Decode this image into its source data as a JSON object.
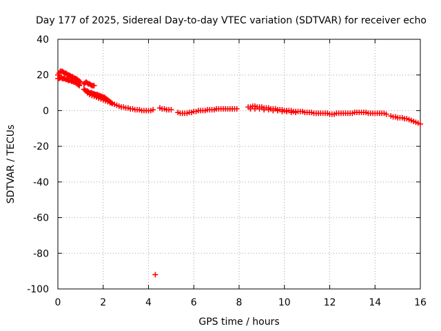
{
  "chart_data": {
    "type": "scatter",
    "title": "Day 177 of 2025, Sidereal Day-to-day VTEC variation (SDTVAR) for receiver echo",
    "xlabel": "GPS time / hours",
    "ylabel": "SDTVAR / TECUs",
    "xlim": [
      0,
      16
    ],
    "ylim": [
      -100,
      40
    ],
    "xticks": [
      0,
      2,
      4,
      6,
      8,
      10,
      12,
      14,
      16
    ],
    "yticks": [
      -100,
      -80,
      -60,
      -40,
      -20,
      0,
      20,
      40
    ],
    "grid": true,
    "marker": "plus",
    "series": [
      {
        "name": "SDTVAR",
        "color": "#ff0000",
        "x": [
          0.0,
          0.05,
          0.1,
          0.15,
          0.2,
          0.25,
          0.3,
          0.35,
          0.4,
          0.45,
          0.5,
          0.55,
          0.6,
          0.65,
          0.7,
          0.75,
          0.8,
          0.85,
          0.9,
          0.95,
          1.0,
          0.0,
          0.05,
          0.1,
          0.15,
          0.2,
          0.25,
          0.3,
          0.35,
          0.4,
          0.45,
          0.5,
          0.55,
          0.6,
          0.65,
          0.7,
          0.75,
          0.8,
          0.85,
          0.9,
          0.95,
          1.15,
          1.2,
          1.25,
          1.3,
          1.35,
          1.4,
          1.45,
          1.5,
          1.55,
          1.6,
          1.15,
          1.2,
          1.25,
          1.3,
          1.35,
          1.4,
          1.45,
          1.5,
          1.55,
          1.6,
          1.65,
          1.7,
          1.75,
          1.8,
          1.85,
          1.9,
          1.95,
          2.0,
          2.05,
          2.1,
          2.15,
          2.2,
          2.25,
          2.3,
          2.35,
          2.4,
          1.3,
          1.4,
          1.5,
          1.6,
          1.7,
          1.8,
          1.9,
          2.0,
          2.1,
          2.2,
          2.3,
          2.4,
          2.5,
          2.6,
          2.7,
          2.8,
          2.9,
          3.0,
          3.1,
          3.2,
          3.3,
          3.4,
          3.5,
          3.6,
          3.7,
          3.8,
          3.9,
          4.0,
          4.1,
          4.2,
          4.3,
          4.5,
          4.6,
          4.7,
          4.8,
          4.9,
          5.0,
          5.3,
          5.4,
          5.5,
          5.6,
          5.7,
          5.8,
          5.9,
          6.0,
          6.1,
          6.2,
          6.3,
          6.4,
          6.5,
          6.6,
          6.7,
          6.8,
          6.9,
          7.0,
          7.1,
          7.2,
          7.3,
          7.4,
          7.5,
          7.6,
          7.7,
          7.8,
          7.9,
          8.4,
          8.5,
          8.6,
          8.7,
          8.8,
          8.9,
          9.0,
          9.1,
          9.2,
          9.3,
          9.4,
          9.5,
          9.6,
          9.7,
          9.8,
          9.9,
          10.0,
          10.1,
          10.2,
          10.3,
          10.4,
          10.5,
          10.6,
          10.7,
          10.8,
          10.9,
          11.0,
          8.5,
          8.7,
          8.9,
          9.1,
          9.3,
          9.5,
          9.7,
          9.9,
          10.1,
          10.3,
          10.5,
          11.1,
          11.2,
          11.3,
          11.4,
          11.5,
          11.6,
          11.7,
          11.8,
          11.9,
          12.0,
          12.1,
          12.2,
          12.3,
          12.4,
          12.5,
          12.6,
          12.7,
          12.8,
          12.9,
          13.0,
          13.1,
          13.2,
          13.3,
          13.4,
          13.5,
          13.6,
          13.7,
          13.8,
          13.9,
          14.0,
          14.1,
          14.2,
          14.3,
          14.4,
          14.5,
          14.7,
          14.8,
          14.9,
          15.0,
          15.1,
          15.2,
          15.3,
          15.4,
          15.5,
          15.6,
          15.7,
          15.8,
          15.9,
          16.0
        ],
        "y": [
          20,
          21,
          22,
          22,
          22,
          21.5,
          21,
          21,
          20.5,
          20,
          20,
          19.5,
          19,
          19,
          18.5,
          18,
          18,
          17.5,
          17,
          16.5,
          16,
          18,
          18,
          18.5,
          18.5,
          18,
          18,
          18,
          17.5,
          17.5,
          17,
          17,
          17,
          16.5,
          16.5,
          16,
          16,
          15.5,
          15,
          14.5,
          14,
          15,
          15.5,
          16,
          15.5,
          15,
          15,
          14.5,
          14,
          14,
          14,
          12,
          11.5,
          11,
          11,
          10.5,
          10,
          10,
          10,
          9.5,
          9.5,
          9,
          9,
          9,
          8.5,
          8.5,
          8,
          8,
          7.5,
          7.5,
          7,
          6.5,
          6,
          5.5,
          5,
          4.5,
          4,
          10,
          9,
          8.5,
          8,
          7.5,
          7,
          6.5,
          6,
          5.5,
          5,
          4.5,
          4,
          3.5,
          3,
          2.5,
          2,
          2,
          1.5,
          1.5,
          1,
          1,
          0.5,
          0.5,
          0.5,
          0,
          0,
          0,
          0,
          0,
          0.5,
          -92,
          1.5,
          1,
          1,
          0.5,
          0.5,
          0.5,
          -1,
          -1.5,
          -1.5,
          -1.5,
          -1.5,
          -1,
          -1,
          -0.5,
          -0.5,
          0,
          0,
          0,
          0,
          0.5,
          0.5,
          0.5,
          0.5,
          1,
          1,
          1,
          1,
          1,
          1,
          1,
          1,
          1,
          1,
          2,
          2,
          2.5,
          2.5,
          2,
          2,
          2,
          1.5,
          1.5,
          1.5,
          1,
          1,
          1,
          0.5,
          0.5,
          0.5,
          0,
          0,
          0,
          0,
          -0.5,
          -0.5,
          -0.5,
          -0.5,
          -0.5,
          -1,
          -1,
          1,
          1,
          1,
          0.5,
          0.5,
          0,
          0,
          -0.5,
          -0.5,
          -1,
          -1,
          -1,
          -1,
          -1.5,
          -1.5,
          -1.5,
          -1.5,
          -1.5,
          -1.5,
          -1.5,
          -2,
          -2,
          -2,
          -1.5,
          -1.5,
          -1.5,
          -1.5,
          -1.5,
          -1.5,
          -1.5,
          -1.5,
          -1,
          -1,
          -1,
          -1,
          -1,
          -1,
          -1.5,
          -1.5,
          -1.5,
          -1.5,
          -1.5,
          -1.5,
          -1.5,
          -1.5,
          -2,
          -3,
          -3.5,
          -3.5,
          -4,
          -4,
          -4,
          -4.5,
          -4.5,
          -5,
          -5.5,
          -6,
          -6.5,
          -7,
          -7.5
        ]
      }
    ]
  }
}
